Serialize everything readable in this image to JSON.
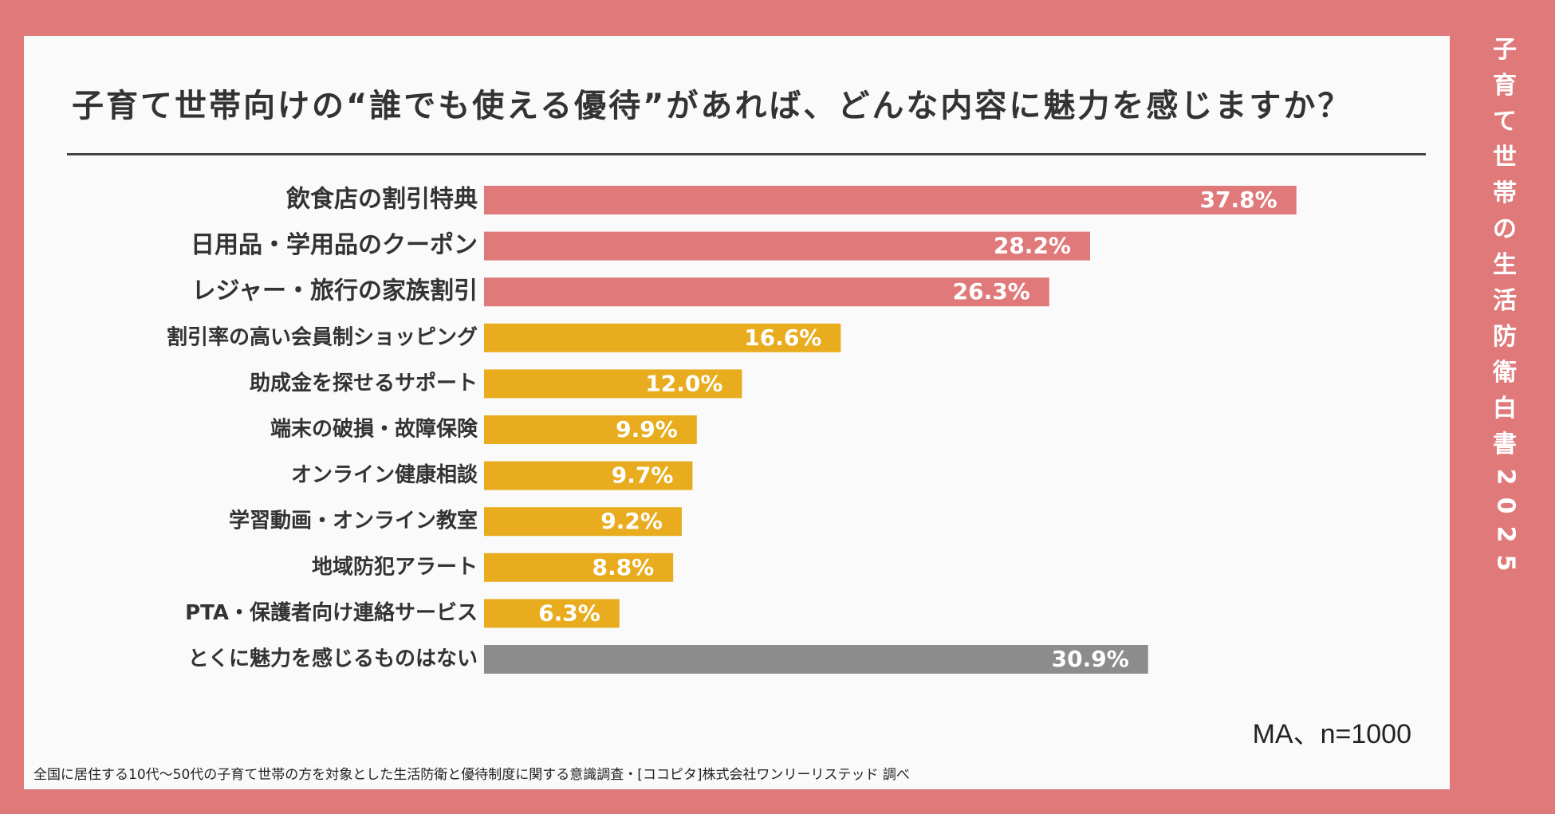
{
  "chart_data": {
    "type": "bar",
    "orientation": "horizontal",
    "title": "子育て世帯向けの“誰でも使える優待”があれば、どんな内容に魅力を感じますか？",
    "categories": [
      "飲食店の割引特典",
      "日用品・学用品のクーポン",
      "レジャー・旅行の家族割引",
      "割引率の高い会員制ショッピング",
      "助成金を探せるサポート",
      "端末の破損・故障保険",
      "オンライン健康相談",
      "学習動画・オンライン教室",
      "地域防犯アラート",
      "PTA・保護者向け連絡サービス",
      "とくに魅力を感じるものはない"
    ],
    "values": [
      37.8,
      28.2,
      26.3,
      16.6,
      12.0,
      9.9,
      9.7,
      9.2,
      8.8,
      6.3,
      30.9
    ],
    "value_labels": [
      "37.8%",
      "28.2%",
      "26.3%",
      "16.6%",
      "12.0%",
      "9.9%",
      "9.7%",
      "9.2%",
      "8.8%",
      "6.3%",
      "30.9%"
    ],
    "groups": [
      "top",
      "top",
      "top",
      "other",
      "other",
      "other",
      "other",
      "other",
      "other",
      "other",
      "none"
    ],
    "xlim": [
      0,
      48
    ],
    "xlabel": "",
    "ylabel": "",
    "grid": false,
    "legend": "none"
  },
  "colors": {
    "top": "#e07a7a",
    "other": "#e8ac1e",
    "none": "#8c8c8c",
    "background": "#e07a7a",
    "panel": "#fafafa"
  },
  "sample_note": "MA、n=1000",
  "source_note": "全国に居住する10代〜50代の子育て世帯の方を対象とした生活防衛と優待制度に関する意識調査・[ココピタ]株式会社ワンリーリステッド 調べ",
  "side_title_chars": [
    "子",
    "育",
    "て",
    "世",
    "帯",
    "の",
    "生",
    "活",
    "防",
    "衛",
    "白",
    "書",
    "2",
    "0",
    "2",
    "5"
  ]
}
